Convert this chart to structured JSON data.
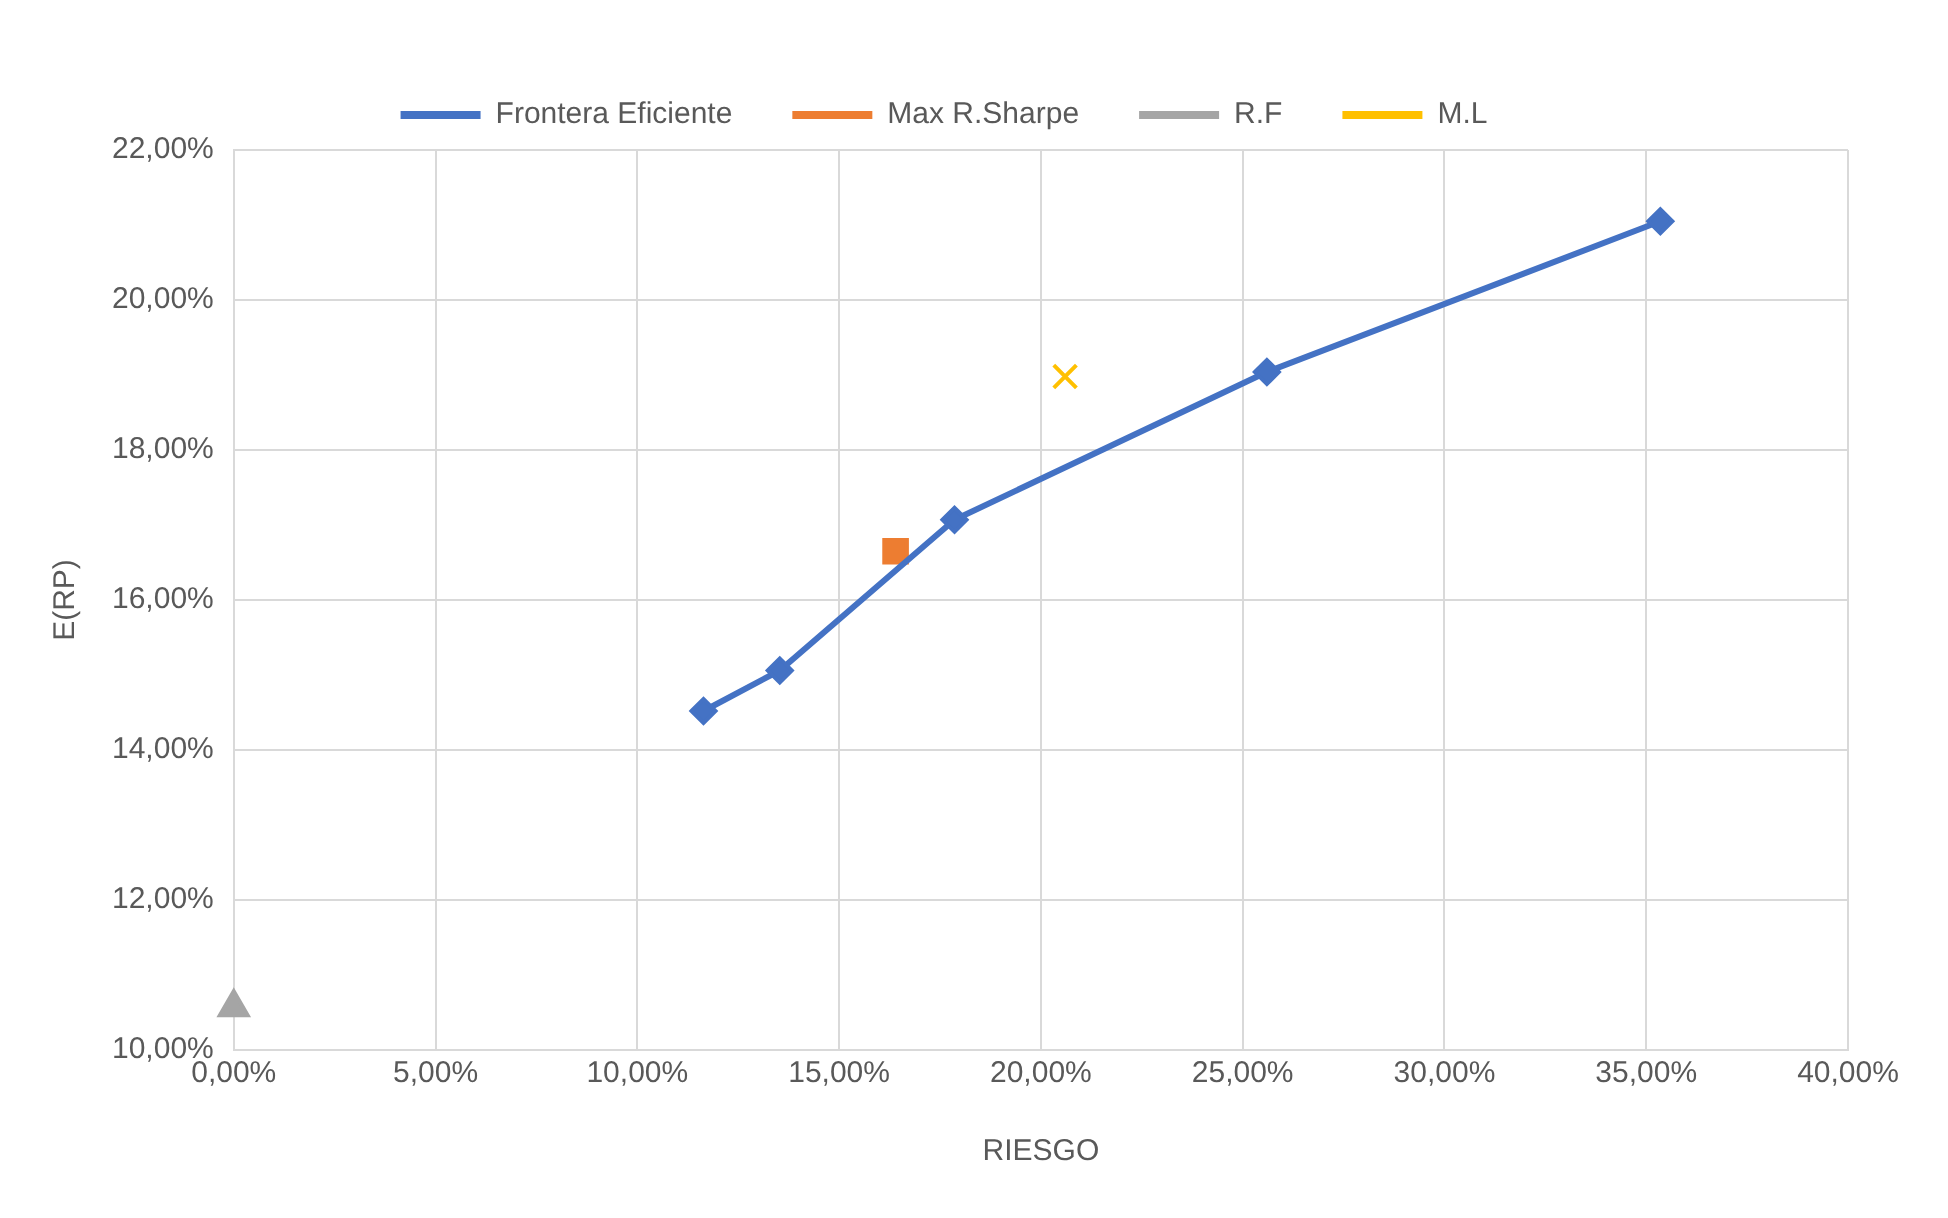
{
  "chart_data": {
    "type": "line",
    "xlabel": "RIESGO",
    "ylabel": "E(RP)",
    "series": [
      {
        "name": "Frontera Eficiente",
        "type": "line",
        "color": "#4472c4",
        "marker": "diamond",
        "x": [
          11.64,
          13.53,
          17.86,
          25.6,
          35.35
        ],
        "values": [
          14.52,
          15.06,
          17.07,
          19.04,
          21.05
        ]
      },
      {
        "name": "Max R.Sharpe",
        "type": "scatter",
        "color": "#ed7d31",
        "marker": "square",
        "x": [
          16.4
        ],
        "values": [
          16.65
        ]
      },
      {
        "name": "R.F",
        "type": "scatter",
        "color": "#a5a5a5",
        "marker": "triangle",
        "x": [
          0
        ],
        "values": [
          10.57
        ]
      },
      {
        "name": "M.L",
        "type": "scatter",
        "color": "#ffc000",
        "marker": "cross",
        "x": [
          20.6
        ],
        "values": [
          18.98
        ]
      }
    ],
    "xlim": [
      0,
      40
    ],
    "xticks": [
      {
        "value": 0,
        "label": "0,00%"
      },
      {
        "value": 5,
        "label": "5,00%"
      },
      {
        "value": 10,
        "label": "10,00%"
      },
      {
        "value": 15,
        "label": "15,00%"
      },
      {
        "value": 20,
        "label": "20,00%"
      },
      {
        "value": 25,
        "label": "25,00%"
      },
      {
        "value": 30,
        "label": "30,00%"
      },
      {
        "value": 35,
        "label": "35,00%"
      },
      {
        "value": 40,
        "label": "40,00%"
      }
    ],
    "ylim": [
      10,
      22
    ],
    "yticks": [
      {
        "value": 10,
        "label": "10,00%"
      },
      {
        "value": 12,
        "label": "12,00%"
      },
      {
        "value": 14,
        "label": "14,00%"
      },
      {
        "value": 16,
        "label": "16,00%"
      },
      {
        "value": 18,
        "label": "18,00%"
      },
      {
        "value": 20,
        "label": "20,00%"
      },
      {
        "value": 22,
        "label": "22,00%"
      }
    ],
    "grid": true,
    "legend": "top"
  }
}
